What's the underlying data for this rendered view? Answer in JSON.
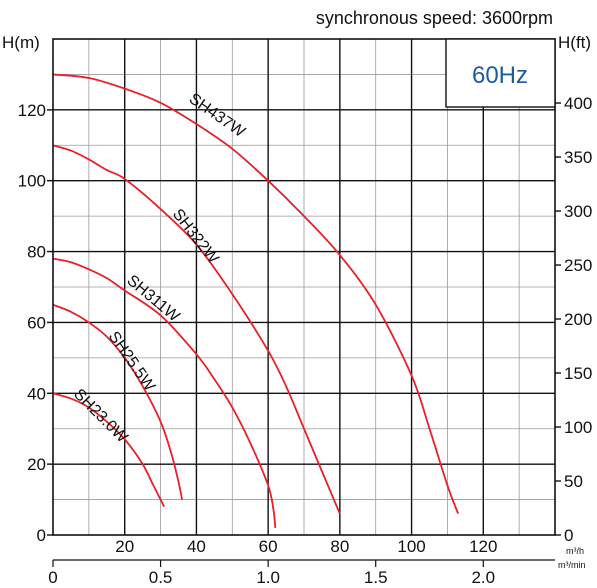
{
  "chart_data": {
    "type": "line",
    "title": "synchronous speed: 3600rpm",
    "frequency_label": "60Hz",
    "colors": {
      "curve": "#e8202a",
      "grid_major": "#111111",
      "grid_minor": "#9a9a9a",
      "badge": "#1f5aa6"
    },
    "y_left": {
      "label": "H(m)",
      "range": [
        0,
        140
      ],
      "ticks": [
        0,
        20,
        40,
        60,
        80,
        100,
        120
      ]
    },
    "y_right": {
      "label": "H(ft)",
      "range": [
        0,
        459.3
      ],
      "ticks": [
        0,
        50,
        100,
        150,
        200,
        250,
        300,
        350,
        400
      ]
    },
    "x_top": {
      "unit": "m³/h",
      "range": [
        0,
        140
      ],
      "ticks": [
        20,
        40,
        60,
        80,
        100,
        120
      ]
    },
    "x_bottom": {
      "unit": "m³/min",
      "range": [
        0,
        2.333
      ],
      "ticks": [
        "0",
        "0.5",
        "1.0",
        "1.5",
        "2.0"
      ],
      "tick_values": [
        0,
        0.5,
        1.0,
        1.5,
        2.0
      ]
    },
    "grid": true,
    "series": [
      {
        "name": "SH437W",
        "points": [
          [
            0,
            130
          ],
          [
            10,
            129
          ],
          [
            20,
            126
          ],
          [
            30,
            122
          ],
          [
            40,
            116
          ],
          [
            50,
            109
          ],
          [
            60,
            100
          ],
          [
            70,
            90
          ],
          [
            80,
            79
          ],
          [
            90,
            65
          ],
          [
            100,
            45
          ],
          [
            105,
            30
          ],
          [
            110,
            14
          ],
          [
            113,
            6
          ]
        ]
      },
      {
        "name": "SH322W",
        "points": [
          [
            0,
            110
          ],
          [
            5,
            108.5
          ],
          [
            10,
            106
          ],
          [
            15,
            103
          ],
          [
            20,
            100.5
          ],
          [
            30,
            92
          ],
          [
            40,
            82
          ],
          [
            50,
            68
          ],
          [
            60,
            52
          ],
          [
            65,
            42
          ],
          [
            70,
            30
          ],
          [
            75,
            18
          ],
          [
            80,
            6
          ]
        ]
      },
      {
        "name": "SH311W",
        "points": [
          [
            0,
            78
          ],
          [
            5,
            77
          ],
          [
            10,
            75
          ],
          [
            15,
            72.5
          ],
          [
            20,
            69
          ],
          [
            30,
            62
          ],
          [
            40,
            51
          ],
          [
            45,
            44
          ],
          [
            50,
            36
          ],
          [
            55,
            26
          ],
          [
            60,
            14
          ],
          [
            61.5,
            7
          ],
          [
            62,
            2
          ]
        ]
      },
      {
        "name": "SH25.5W",
        "points": [
          [
            0,
            65
          ],
          [
            5,
            63
          ],
          [
            10,
            60
          ],
          [
            15,
            56
          ],
          [
            20,
            50
          ],
          [
            25,
            42
          ],
          [
            30,
            32
          ],
          [
            33,
            23
          ],
          [
            35,
            15
          ],
          [
            36,
            10
          ]
        ]
      },
      {
        "name": "SH23.0W",
        "points": [
          [
            0,
            40
          ],
          [
            5,
            38.5
          ],
          [
            10,
            36
          ],
          [
            15,
            32
          ],
          [
            20,
            27
          ],
          [
            25,
            20
          ],
          [
            28,
            14
          ],
          [
            31,
            8
          ]
        ]
      }
    ]
  }
}
